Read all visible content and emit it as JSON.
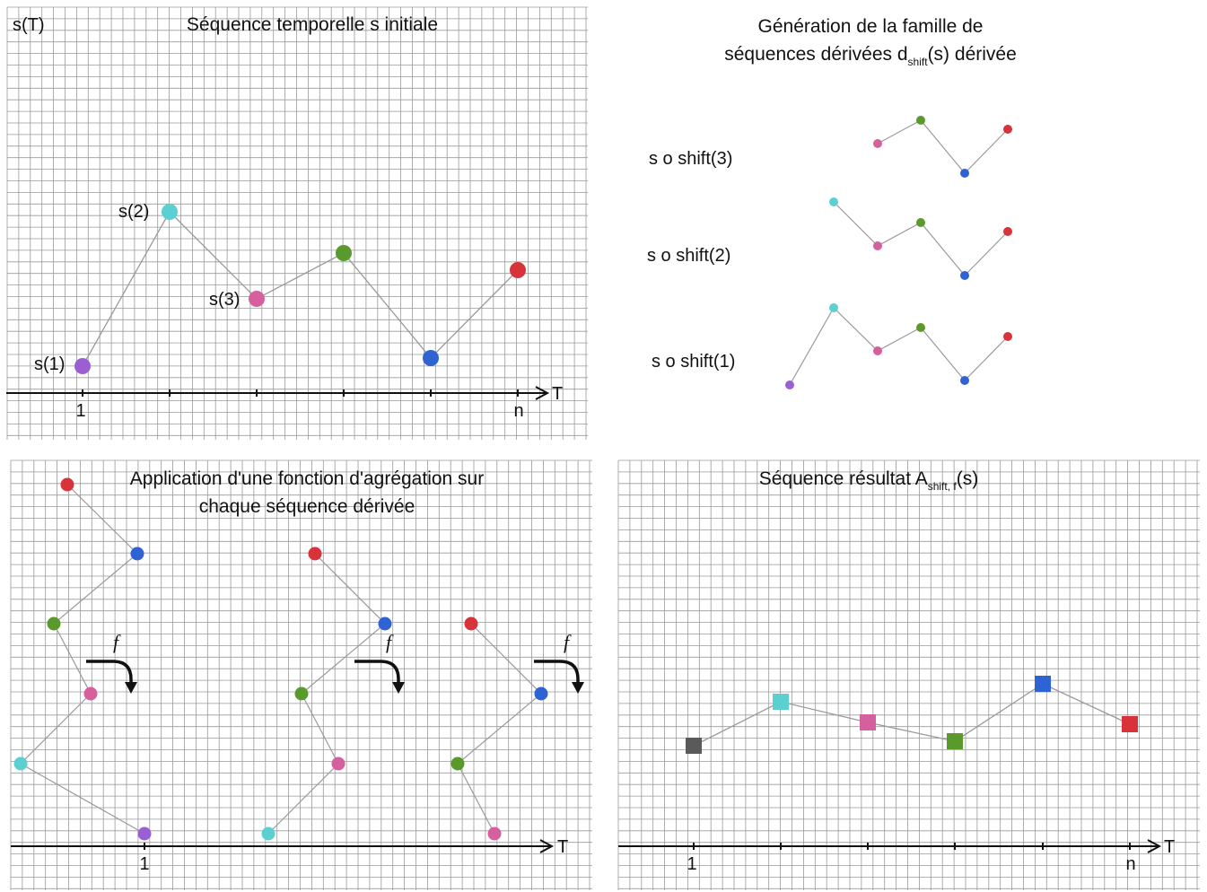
{
  "colors": {
    "purple": "#9b5fd3",
    "cyan": "#5ccfd1",
    "pink": "#d6609e",
    "green": "#5a9a2c",
    "blue": "#2f62d2",
    "red": "#d8323a",
    "gray": "#5a5a5a",
    "grid": "#9a9a9a",
    "line": "#9a9a9a"
  },
  "panel1": {
    "ylabel": "s(T)",
    "title": "Séquence temporelle s initiale",
    "x_start": "1",
    "x_end": "n",
    "axis": "T",
    "labels": [
      "s(1)",
      "s(2)",
      "s(3)"
    ],
    "points": [
      {
        "color": "purple"
      },
      {
        "color": "cyan"
      },
      {
        "color": "pink"
      },
      {
        "color": "green"
      },
      {
        "color": "blue"
      },
      {
        "color": "red"
      }
    ]
  },
  "panel2": {
    "title_line1": "Génération de la famille de",
    "title_line2_pre": "séquences dérivées d",
    "title_sub": "shift",
    "title_line2_post": "(s) dérivée",
    "rows": [
      "s o shift(3)",
      "s o shift(2)",
      "s o shift(1)"
    ]
  },
  "panel3": {
    "title_line1": "Application d'une fonction d'agrégation sur",
    "title_line2": "chaque séquence  dérivée",
    "f_label": "f",
    "x_start": "1",
    "axis": "T"
  },
  "panel4": {
    "title_pre": "Séquence résultat A",
    "title_sub": "shift, f",
    "title_post": "(s)",
    "x_start": "1",
    "x_end": "n",
    "axis": "T",
    "squares": [
      "gray",
      "cyan",
      "pink",
      "green",
      "blue",
      "red"
    ]
  }
}
